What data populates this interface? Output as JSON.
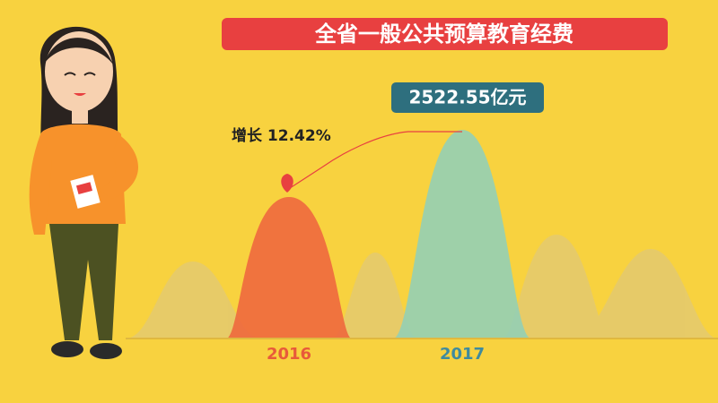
{
  "title": "全省一般公共预算教育经费",
  "growth_label": "增长 12.42%",
  "value_label": "2522.55亿元",
  "years": [
    "2016",
    "2017"
  ]
}
